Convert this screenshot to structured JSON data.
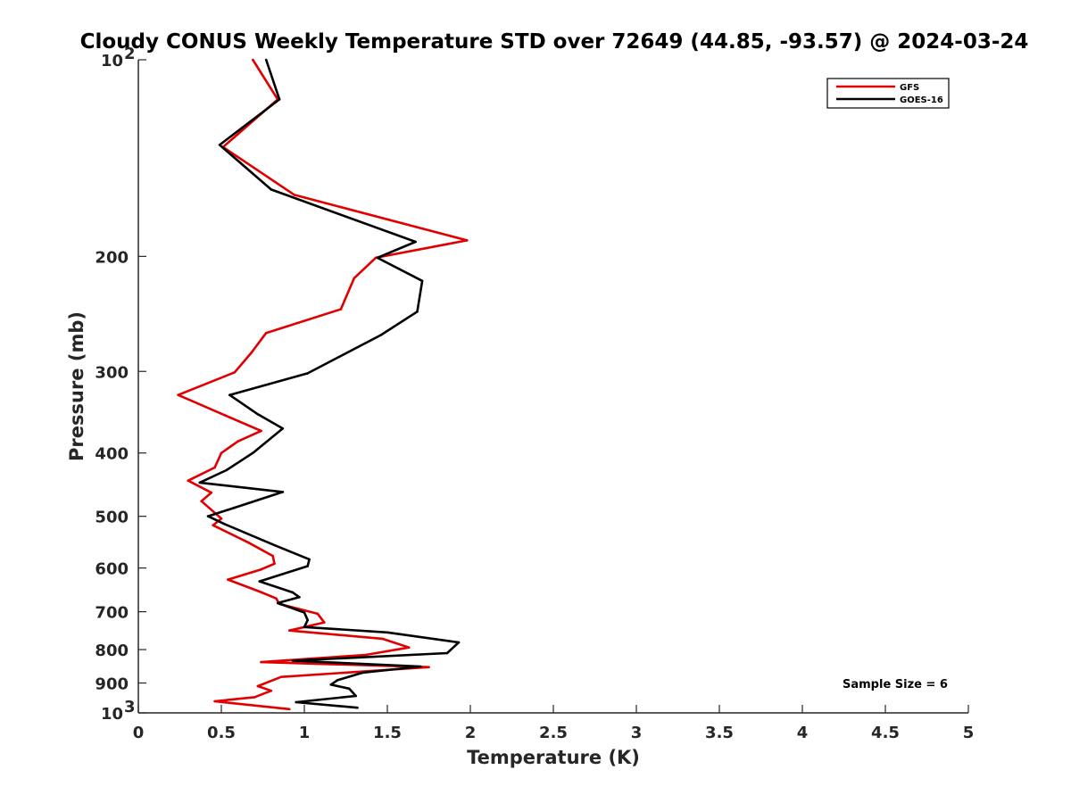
{
  "chart_data": {
    "type": "line",
    "title": "Cloudy CONUS Weekly Temperature STD over 72649 (44.85, -93.57) @ 2024-03-24",
    "xlabel": "Temperature (K)",
    "ylabel": "Pressure (mb)",
    "xlim": [
      0,
      5
    ],
    "ylim": [
      100,
      1000
    ],
    "y_scale": "log",
    "y_reversed": true,
    "x_ticks": [
      0,
      0.5,
      1,
      1.5,
      2,
      2.5,
      3,
      3.5,
      4,
      4.5,
      5
    ],
    "x_tick_labels": [
      "0",
      "0.5",
      "1",
      "1.5",
      "2",
      "2.5",
      "3",
      "3.5",
      "4",
      "4.5",
      "5"
    ],
    "y_ticks": [
      100,
      200,
      300,
      400,
      500,
      600,
      700,
      800,
      900,
      1000
    ],
    "y_tick_labels": [
      {
        "base": "10",
        "exp": "2"
      },
      {
        "base": "200",
        "exp": ""
      },
      {
        "base": "300",
        "exp": ""
      },
      {
        "base": "400",
        "exp": ""
      },
      {
        "base": "500",
        "exp": ""
      },
      {
        "base": "600",
        "exp": ""
      },
      {
        "base": "700",
        "exp": ""
      },
      {
        "base": "800",
        "exp": ""
      },
      {
        "base": "900",
        "exp": ""
      },
      {
        "base": "10",
        "exp": "3"
      }
    ],
    "grid": false,
    "legend_position": "top-right",
    "series": [
      {
        "name": "GFS",
        "color": "#e00000",
        "points": [
          [
            0.69,
            100
          ],
          [
            0.84,
            115
          ],
          [
            0.51,
            136
          ],
          [
            0.94,
            161
          ],
          [
            1.98,
            189
          ],
          [
            1.43,
            201
          ],
          [
            1.3,
            216
          ],
          [
            1.22,
            241
          ],
          [
            0.77,
            262
          ],
          [
            0.68,
            281
          ],
          [
            0.58,
            301
          ],
          [
            0.24,
            326
          ],
          [
            0.52,
            350
          ],
          [
            0.74,
            370
          ],
          [
            0.6,
            384
          ],
          [
            0.5,
            400
          ],
          [
            0.46,
            421
          ],
          [
            0.3,
            441
          ],
          [
            0.44,
            460
          ],
          [
            0.38,
            474
          ],
          [
            0.5,
            504
          ],
          [
            0.45,
            516
          ],
          [
            0.66,
            548
          ],
          [
            0.81,
            575
          ],
          [
            0.82,
            591
          ],
          [
            0.74,
            603
          ],
          [
            0.54,
            625
          ],
          [
            0.73,
            652
          ],
          [
            0.83,
            668
          ],
          [
            0.85,
            681
          ],
          [
            1.08,
            705
          ],
          [
            1.12,
            727
          ],
          [
            0.91,
            748
          ],
          [
            1.47,
            770
          ],
          [
            1.63,
            794
          ],
          [
            1.37,
            815
          ],
          [
            0.74,
            836
          ],
          [
            1.75,
            851
          ],
          [
            0.86,
            881
          ],
          [
            0.72,
            910
          ],
          [
            0.8,
            925
          ],
          [
            0.7,
            946
          ],
          [
            0.46,
            960
          ],
          [
            0.91,
            987
          ]
        ]
      },
      {
        "name": "GOES-16",
        "color": "#000000",
        "points": [
          [
            0.77,
            100
          ],
          [
            0.85,
            115
          ],
          [
            0.49,
            135
          ],
          [
            0.8,
            158
          ],
          [
            1.67,
            190
          ],
          [
            1.44,
            201
          ],
          [
            1.71,
            218
          ],
          [
            1.68,
            243
          ],
          [
            1.46,
            264
          ],
          [
            1.21,
            285
          ],
          [
            1.02,
            302
          ],
          [
            0.55,
            326
          ],
          [
            0.72,
            349
          ],
          [
            0.87,
            367
          ],
          [
            0.69,
            400
          ],
          [
            0.53,
            425
          ],
          [
            0.37,
            444
          ],
          [
            0.87,
            459
          ],
          [
            0.58,
            485
          ],
          [
            0.42,
            500
          ],
          [
            0.52,
            514
          ],
          [
            0.83,
            555
          ],
          [
            1.03,
            582
          ],
          [
            1.02,
            596
          ],
          [
            0.73,
            629
          ],
          [
            0.93,
            654
          ],
          [
            0.97,
            665
          ],
          [
            0.84,
            679
          ],
          [
            1.0,
            702
          ],
          [
            1.02,
            721
          ],
          [
            1.0,
            739
          ],
          [
            1.5,
            753
          ],
          [
            1.93,
            780
          ],
          [
            1.86,
            810
          ],
          [
            0.93,
            832
          ],
          [
            1.7,
            849
          ],
          [
            1.35,
            868
          ],
          [
            1.2,
            891
          ],
          [
            1.16,
            905
          ],
          [
            1.27,
            918
          ],
          [
            1.31,
            942
          ],
          [
            0.95,
            963
          ],
          [
            1.32,
            982
          ]
        ]
      }
    ],
    "annotation": "Sample Size = 6"
  }
}
